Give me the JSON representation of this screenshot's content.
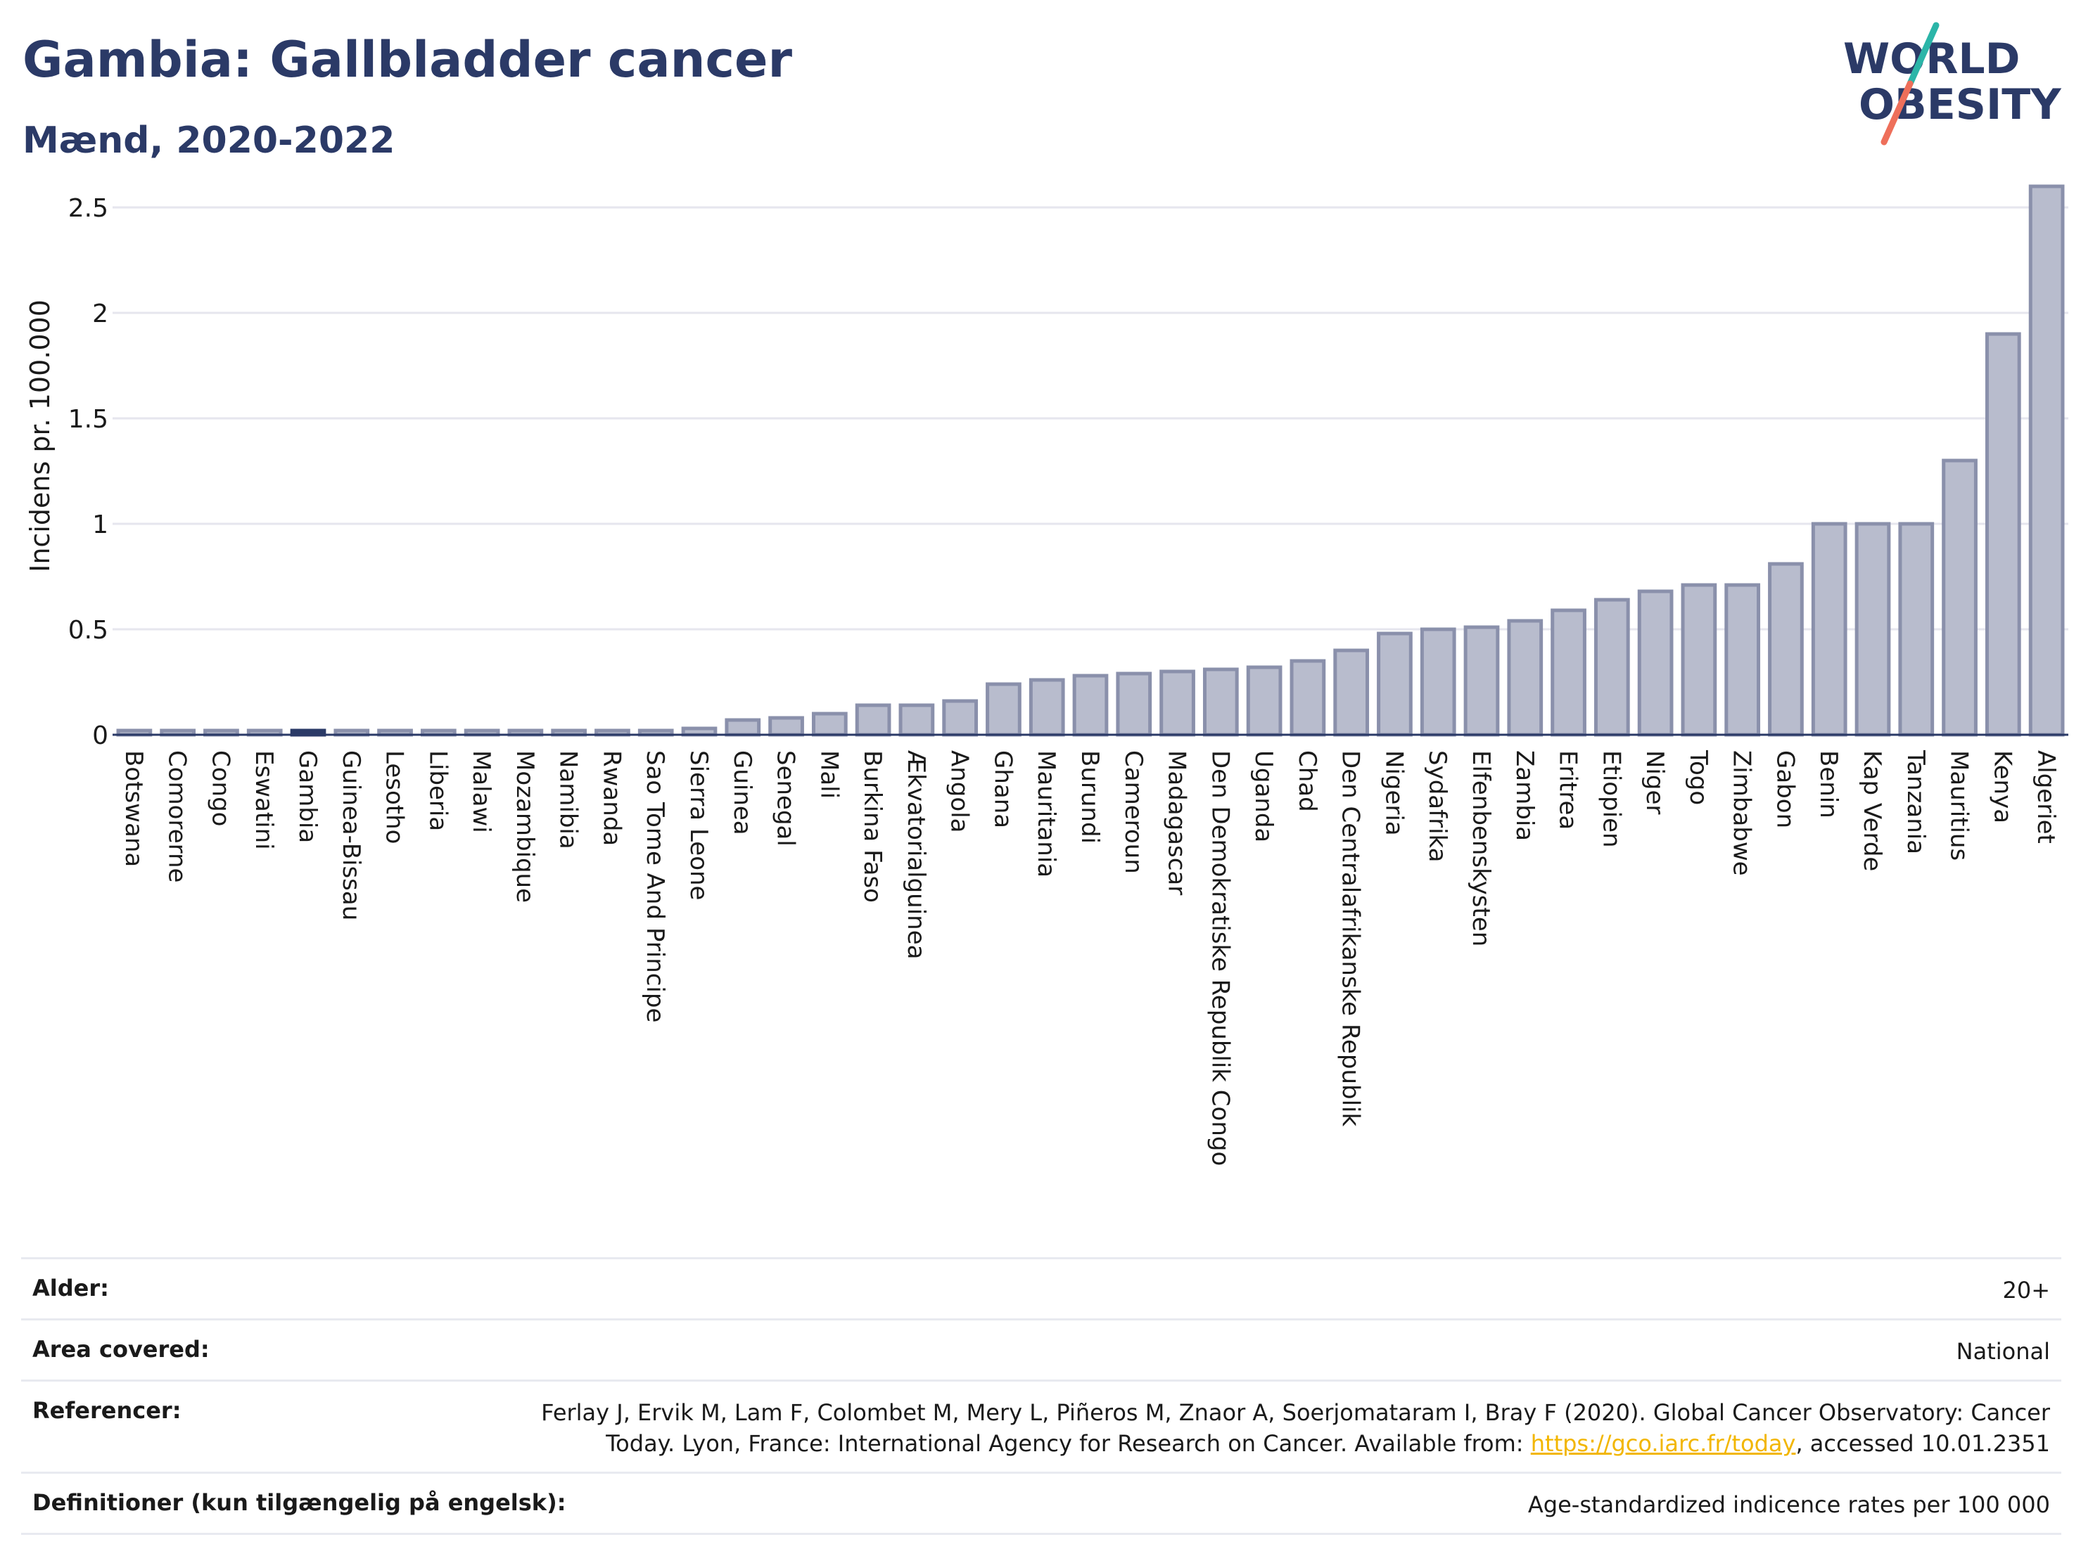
{
  "header": {
    "title": "Gambia: Gallbladder cancer",
    "subtitle": "Mænd, 2020-2022"
  },
  "logo": {
    "line1": "WORLD",
    "line2": "OBESITY"
  },
  "colors": {
    "title": "#2b3a67",
    "bar_fill": "#b8bccd",
    "bar_stroke": "#8a90ab",
    "highlight_fill": "#2b3a67",
    "grid": "#e6e6ee",
    "logo_teal": "#2bb5a8",
    "logo_coral": "#ee6f5a",
    "link": "#f2b600"
  },
  "chart_data": {
    "type": "bar",
    "title": "Gambia: Gallbladder cancer",
    "subtitle": "Mænd, 2020-2022",
    "xlabel": "",
    "ylabel": "Incidens pr. 100.000",
    "ylim": [
      0,
      2.7
    ],
    "yticks": [
      0,
      0.5,
      1,
      1.5,
      2,
      2.5
    ],
    "ytick_labels": [
      "0",
      "0.5",
      "1",
      "1.5",
      "2",
      "2.5"
    ],
    "grid": true,
    "highlight": "Gambia",
    "categories": [
      "Botswana",
      "Comorerne",
      "Congo",
      "Eswatini",
      "Gambia",
      "Guinea-Bissau",
      "Lesotho",
      "Liberia",
      "Malawi",
      "Mozambique",
      "Namibia",
      "Rwanda",
      "Sao Tome And Principe",
      "Sierra Leone",
      "Guinea",
      "Senegal",
      "Mali",
      "Burkina Faso",
      "Ækvatorialguinea",
      "Angola",
      "Ghana",
      "Mauritania",
      "Burundi",
      "Cameroun",
      "Madagascar",
      "Den Demokratiske Republik Congo",
      "Uganda",
      "Chad",
      "Den Centralafrikanske Republik",
      "Nigeria",
      "Sydafrika",
      "Elfenbenskysten",
      "Zambia",
      "Eritrea",
      "Etiopien",
      "Niger",
      "Togo",
      "Zimbabwe",
      "Gabon",
      "Benin",
      "Kap Verde",
      "Tanzania",
      "Mauritius",
      "Kenya",
      "Algeriet"
    ],
    "values": [
      0,
      0,
      0,
      0,
      0,
      0,
      0,
      0,
      0,
      0,
      0,
      0,
      0,
      0.03,
      0.07,
      0.08,
      0.1,
      0.14,
      0.14,
      0.16,
      0.24,
      0.26,
      0.28,
      0.29,
      0.3,
      0.31,
      0.32,
      0.35,
      0.4,
      0.48,
      0.5,
      0.51,
      0.54,
      0.59,
      0.64,
      0.68,
      0.71,
      0.71,
      0.81,
      1.0,
      1.0,
      1.0,
      1.3,
      1.9,
      2.6
    ]
  },
  "meta": {
    "rows": [
      {
        "key": "Alder:",
        "value": "20+"
      },
      {
        "key": "Area covered:",
        "value": "National"
      },
      {
        "key": "Referencer:",
        "value_line1": "Ferlay J, Ervik M, Lam F, Colombet M, Mery L, Piñeros M, Znaor A, Soerjomataram I, Bray F (2020). Global Cancer Observatory: Cancer",
        "value_pre": "Today. Lyon, France: International Agency for Research on Cancer. Available from: ",
        "link": "https://gco.iarc.fr/today",
        "value_post": ", accessed 10.01.2351"
      },
      {
        "key": "Definitioner (kun tilgængelig på engelsk):",
        "value": "Age-standardized indicence rates per 100 000"
      }
    ]
  }
}
